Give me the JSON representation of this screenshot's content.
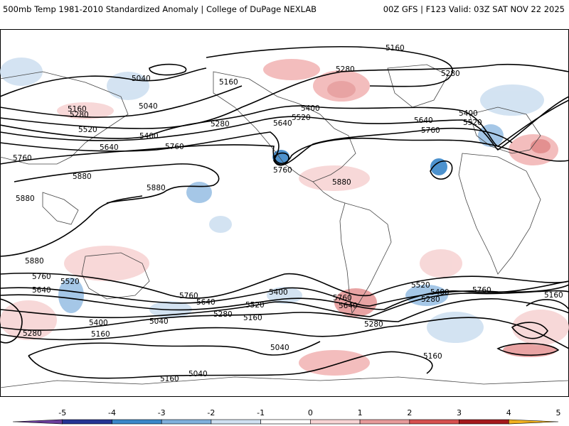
{
  "header": {
    "left": "500mb Temp 1981-2010 Standardized Anomaly | College of DuPage NEXLAB",
    "right": "00Z GFS | F123 Valid: 03Z SAT NOV 22 2025"
  },
  "map": {
    "contour_labels": [
      "5040",
      "5160",
      "5280",
      "5400",
      "5520",
      "5640",
      "5760",
      "5880"
    ]
  },
  "colorbar": {
    "ticks": [
      "-5",
      "-4",
      "-3",
      "-2",
      "-1",
      "0",
      "1",
      "2",
      "3",
      "4",
      "5"
    ],
    "colors": {
      "m5": "#6a3d9a",
      "m4": "#253494",
      "m3": "#3a87c9",
      "m2": "#7fb0dc",
      "m1": "#cfe0f1",
      "z": "#ffffff",
      "p1": "#f7d4d4",
      "p2": "#e69a9a",
      "p3": "#d6504f",
      "p4": "#a5191c",
      "p5": "#f0b020"
    }
  }
}
